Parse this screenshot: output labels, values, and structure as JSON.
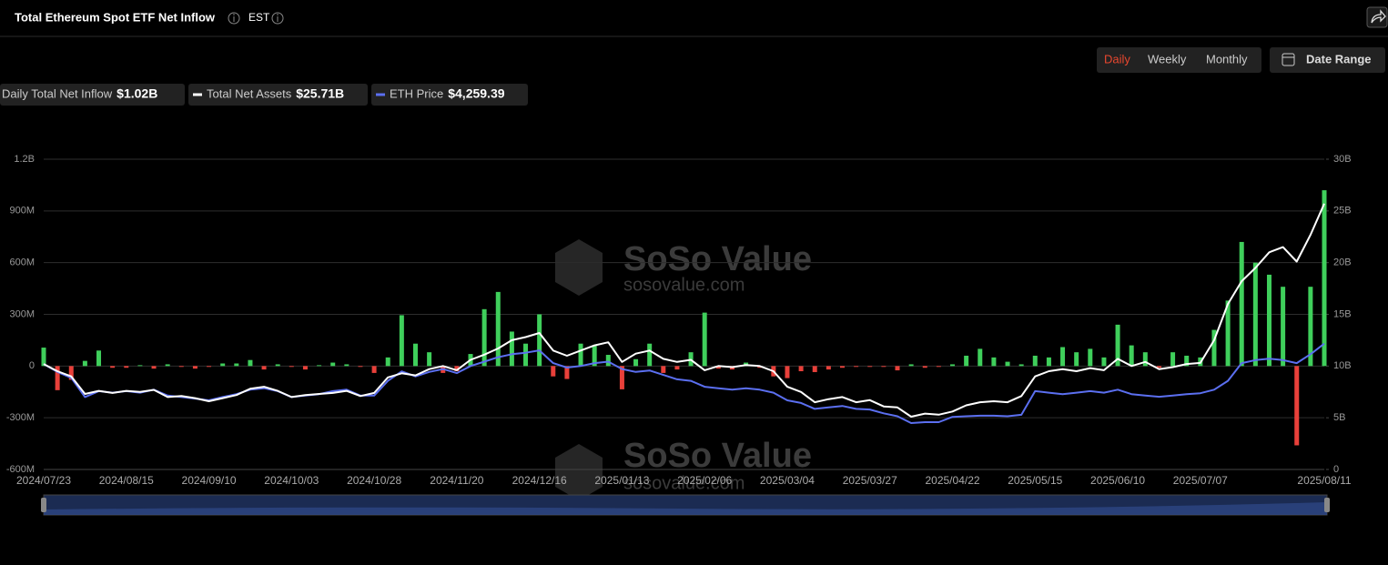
{
  "header": {
    "title": "Total Ethereum Spot ETF Net Inflow",
    "timezone": "EST"
  },
  "controls": {
    "periods": [
      "Daily",
      "Weekly",
      "Monthly"
    ],
    "active_period": "Daily",
    "date_range": "Date Range"
  },
  "watermark": {
    "brand": "SoSo Value",
    "site": "sosovalue.com"
  },
  "chart_data": {
    "type": "bar",
    "categories": [
      "2024/07/23",
      null,
      null,
      null,
      null,
      null,
      "2024/08/15",
      null,
      null,
      null,
      null,
      null,
      "2024/09/10",
      null,
      null,
      null,
      null,
      null,
      "2024/10/03",
      null,
      null,
      null,
      null,
      null,
      "2024/10/28",
      null,
      null,
      null,
      null,
      null,
      "2024/11/20",
      null,
      null,
      null,
      null,
      null,
      "2024/12/16",
      null,
      null,
      null,
      null,
      null,
      "2025/01/13",
      null,
      null,
      null,
      null,
      null,
      "2025/02/06",
      null,
      null,
      null,
      null,
      null,
      "2025/03/04",
      null,
      null,
      null,
      null,
      null,
      "2025/03/27",
      null,
      null,
      null,
      null,
      null,
      "2025/04/22",
      null,
      null,
      null,
      null,
      null,
      "2025/05/15",
      null,
      null,
      null,
      null,
      null,
      "2025/06/10",
      null,
      null,
      null,
      null,
      null,
      "2025/07/07",
      null,
      null,
      null,
      null,
      null,
      null,
      null,
      null,
      "2025/08/11"
    ],
    "series": [
      {
        "name": "Daily Total Net Inflow",
        "latest": "$1.02B",
        "type": "bar",
        "axis": "y",
        "color": "#3fcf5b",
        "negative_color": "#e8403a",
        "values": [
          107,
          -140,
          -80,
          30,
          90,
          -10,
          -10,
          5,
          -15,
          10,
          -5,
          -15,
          -5,
          15,
          15,
          35,
          -20,
          10,
          -5,
          -20,
          5,
          20,
          10,
          -5,
          -40,
          50,
          295,
          130,
          80,
          -40,
          -30,
          70,
          330,
          430,
          200,
          130,
          300,
          -60,
          -75,
          130,
          120,
          65,
          -135,
          40,
          130,
          -40,
          -20,
          80,
          310,
          -15,
          -20,
          20,
          -10,
          -60,
          -70,
          -30,
          -35,
          -20,
          -10,
          -5,
          -5,
          -5,
          -25,
          10,
          -10,
          -5,
          10,
          60,
          100,
          50,
          25,
          10,
          60,
          50,
          110,
          80,
          100,
          50,
          240,
          120,
          80,
          -10,
          80,
          60,
          50,
          210,
          380,
          720,
          600,
          530,
          460,
          -460,
          460,
          1020
        ]
      },
      {
        "name": "Total Net Assets",
        "latest": "$25.71B",
        "type": "line",
        "axis": "y2",
        "color": "#ffffff",
        "values": [
          10.2,
          9.5,
          9.0,
          7.3,
          7.6,
          7.4,
          7.6,
          7.5,
          7.7,
          7.0,
          7.1,
          6.9,
          6.6,
          6.9,
          7.2,
          7.8,
          8.0,
          7.6,
          7.0,
          7.2,
          7.3,
          7.4,
          7.6,
          7.1,
          7.4,
          8.9,
          9.3,
          9.1,
          9.7,
          10.0,
          9.6,
          10.6,
          11.1,
          11.7,
          12.5,
          12.8,
          13.2,
          11.5,
          11.0,
          11.5,
          12.0,
          12.3,
          10.4,
          11.2,
          11.5,
          10.7,
          10.4,
          10.6,
          9.6,
          10.0,
          9.9,
          10.1,
          10.0,
          9.5,
          8.0,
          7.5,
          6.5,
          6.8,
          7.0,
          6.5,
          6.7,
          6.1,
          6.0,
          5.1,
          5.4,
          5.3,
          5.6,
          6.2,
          6.5,
          6.6,
          6.5,
          7.1,
          9.0,
          9.5,
          9.7,
          9.5,
          9.8,
          9.6,
          10.7,
          10.0,
          10.4,
          9.7,
          9.9,
          10.2,
          10.3,
          12.5,
          16.0,
          18.2,
          19.5,
          21.0,
          21.5,
          20.1,
          22.7,
          25.71
        ]
      },
      {
        "name": "ETH Price",
        "latest": "$4,259.39",
        "type": "line",
        "axis": "y3",
        "color": "#5b6ff0",
        "values": [
          3570,
          3300,
          3100,
          2450,
          2650,
          2600,
          2650,
          2600,
          2700,
          2500,
          2450,
          2400,
          2340,
          2450,
          2550,
          2700,
          2750,
          2650,
          2450,
          2500,
          2550,
          2650,
          2700,
          2500,
          2500,
          3000,
          3320,
          3150,
          3300,
          3400,
          3260,
          3500,
          3650,
          3800,
          3900,
          3950,
          4030,
          3600,
          3450,
          3500,
          3600,
          3650,
          3400,
          3300,
          3350,
          3200,
          3050,
          3000,
          2800,
          2750,
          2700,
          2750,
          2700,
          2600,
          2340,
          2250,
          2050,
          2100,
          2150,
          2050,
          2030,
          1900,
          1800,
          1570,
          1600,
          1600,
          1780,
          1800,
          1820,
          1820,
          1800,
          1850,
          2650,
          2600,
          2550,
          2600,
          2650,
          2600,
          2700,
          2550,
          2500,
          2460,
          2500,
          2550,
          2580,
          2700,
          3000,
          3600,
          3700,
          3750,
          3700,
          3600,
          3900,
          4259.39
        ]
      }
    ],
    "ylim": [
      -600,
      1200
    ],
    "yticks": [
      {
        "value": -600,
        "label": "-600M"
      },
      {
        "value": -300,
        "label": "-300M"
      },
      0,
      {
        "value": 300,
        "label": "300M"
      },
      {
        "value": 600,
        "label": "600M"
      },
      {
        "value": 900,
        "label": "900M"
      },
      {
        "value": 1200,
        "label": "1.2B"
      }
    ],
    "y2lim": [
      0,
      30
    ],
    "y2ticks": [
      0,
      {
        "value": 5,
        "label": "5B"
      },
      {
        "value": 10,
        "label": "10B"
      },
      {
        "value": 15,
        "label": "15B"
      },
      {
        "value": 20,
        "label": "20B"
      },
      {
        "value": 25,
        "label": "25B"
      },
      {
        "value": 30,
        "label": "30B"
      }
    ],
    "y3lim": [
      0,
      10500
    ],
    "grid": true
  }
}
